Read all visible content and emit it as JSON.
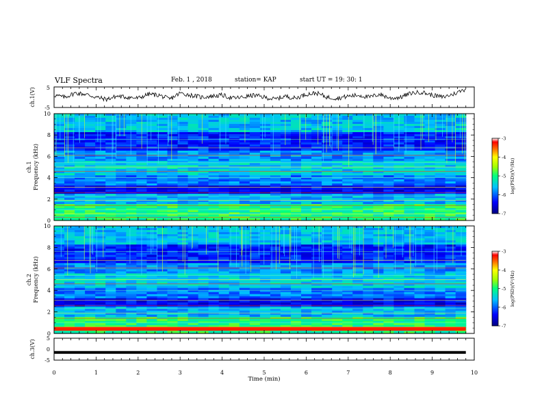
{
  "header": {
    "title": "VLF Spectra",
    "date": "Feb. 1 , 2018",
    "station": "station= KAP",
    "start": "start UT =  19: 30: 1"
  },
  "chart_data": [
    {
      "type": "line",
      "panel": "ch1-waveform",
      "ylabel": "ch.1(V)",
      "ylim": [
        -5,
        5
      ],
      "y_ticks": [
        "5",
        "-5"
      ],
      "xlim": [
        0,
        10
      ],
      "series": [
        {
          "x": [
            0,
            0.25,
            0.5,
            0.75,
            1,
            1.25,
            1.5,
            1.75,
            2,
            2.25,
            2.5,
            2.75,
            3,
            3.25,
            3.5,
            3.75,
            4,
            4.25,
            4.5,
            4.75,
            5,
            5.25,
            5.5,
            5.75,
            6,
            6.25,
            6.5,
            6.75,
            7,
            7.25,
            7.5,
            7.75,
            8,
            8.25,
            8.5,
            8.75,
            9,
            9.25,
            9.5,
            9.8
          ],
          "values": [
            1,
            0,
            2,
            1.5,
            0,
            -1,
            0.5,
            0,
            -0.5,
            1.5,
            1,
            -1,
            2,
            1,
            0,
            0.5,
            1,
            -0.5,
            0,
            1,
            0,
            -1,
            0.5,
            -0.5,
            1.5,
            2,
            0,
            -0.5,
            0.5,
            1,
            0,
            1.5,
            -0.5,
            0,
            2,
            2.5,
            1,
            0,
            1.5,
            4
          ]
        }
      ]
    },
    {
      "type": "heatmap",
      "panel": "ch1-spectrogram",
      "ylabel": "ch.1 Frequency (kHz)",
      "y_ticks": [
        "0",
        "2",
        "4",
        "6",
        "8",
        "10"
      ],
      "ylim": [
        0,
        10
      ],
      "xlim": [
        0,
        9.8
      ],
      "colorbar": {
        "label": "log(PSD)(V²/Hz)",
        "range": [
          -7,
          -3
        ],
        "ticks": [
          "-3",
          "-4",
          "-5",
          "-6",
          "-7"
        ]
      }
    },
    {
      "type": "heatmap",
      "panel": "ch2-spectrogram",
      "ylabel": "ch.2 Frequency (kHz)",
      "y_ticks": [
        "0",
        "2",
        "4",
        "6",
        "8",
        "10"
      ],
      "ylim": [
        0,
        10
      ],
      "xlim": [
        0,
        9.8
      ],
      "colorbar": {
        "label": "log(PSD)(V²/Hz)",
        "range": [
          -7,
          -3
        ],
        "ticks": [
          "-3",
          "-4",
          "-5",
          "-6",
          "-7"
        ]
      }
    },
    {
      "type": "line",
      "panel": "ch3-waveform",
      "ylabel": "ch.3(V)",
      "ylim": [
        -5,
        5
      ],
      "y_ticks": [
        "5",
        "0",
        "-5"
      ],
      "xlabel": "Time (min)",
      "xlim": [
        0,
        10
      ],
      "x_ticks": [
        "0",
        "1",
        "2",
        "3",
        "4",
        "5",
        "6",
        "7",
        "8",
        "9",
        "10"
      ],
      "series": [
        {
          "x": [
            0,
            9.8
          ],
          "values": [
            -1.5,
            -1.5
          ]
        }
      ]
    }
  ]
}
